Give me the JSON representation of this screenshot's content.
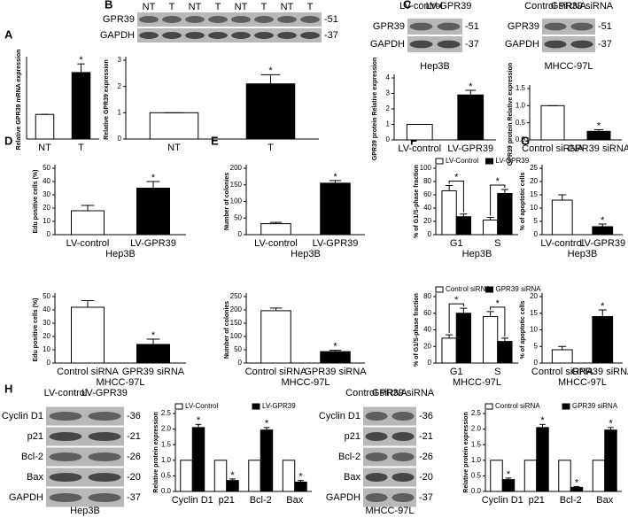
{
  "panels": [
    "A",
    "B",
    "C",
    "D",
    "E",
    "F",
    "G",
    "H"
  ],
  "blots": [
    {
      "columns": [
        "NT",
        "T",
        "NT",
        "T",
        "NT",
        "T",
        "NT",
        "T"
      ],
      "rows": [
        {
          "label": "GPR39",
          "size": "-51"
        },
        {
          "label": "GAPDH",
          "size": "-37"
        }
      ]
    },
    {
      "columns": [
        "LV-control",
        "LV-GPR39"
      ],
      "rows": [
        {
          "label": "GPR39",
          "size": "-51"
        },
        {
          "label": "GAPDH",
          "size": "-37"
        }
      ],
      "caption": "Hep3B"
    },
    {
      "columns": [
        "Control siRNA",
        "GPR39 siRNA"
      ],
      "rows": [
        {
          "label": "GPR39",
          "size": "-51"
        },
        {
          "label": "GAPDH",
          "size": "-37"
        }
      ],
      "caption": "MHCC-97L"
    },
    {
      "columns": [
        "LV-control",
        "LV-GPR39"
      ],
      "rows": [
        {
          "label": "Cyclin D1",
          "size": "-36"
        },
        {
          "label": "p21",
          "size": "-21"
        },
        {
          "label": "Bcl-2",
          "size": "-26"
        },
        {
          "label": "Bax",
          "size": "-20"
        },
        {
          "label": "GAPDH",
          "size": "-37"
        }
      ],
      "caption": "Hep3B"
    },
    {
      "columns": [
        "Control siRNA",
        "GPR39 siRNA"
      ],
      "rows": [
        {
          "label": "Cyclin D1",
          "size": "-36"
        },
        {
          "label": "p21",
          "size": "-21"
        },
        {
          "label": "Bcl-2",
          "size": "-26"
        },
        {
          "label": "Bax",
          "size": "-20"
        },
        {
          "label": "GAPDH",
          "size": "-37"
        }
      ],
      "caption": "MHCC-97L"
    }
  ],
  "chart_data": [
    {
      "type": "bar",
      "y_label": "Relative GPR39 mRNA expression",
      "categories": [
        "NT",
        "T"
      ],
      "values": [
        1,
        2.7
      ],
      "errors": [
        0,
        0.35
      ],
      "colors": [
        "#ffffff",
        "#000000"
      ],
      "ylim": [
        0,
        3.2
      ],
      "annotations": [
        {
          "text": "*",
          "category": "T"
        }
      ]
    },
    {
      "type": "bar",
      "y_label": "Relative GPR39 expression",
      "categories": [
        "NT",
        "T"
      ],
      "values": [
        1,
        2.1
      ],
      "errors": [
        0,
        0.35
      ],
      "colors": [
        "#ffffff",
        "#000000"
      ],
      "ylim": [
        0,
        3
      ],
      "yticks": [
        0,
        1,
        2,
        3
      ],
      "annotations": [
        {
          "text": "*",
          "category": "T"
        }
      ]
    },
    {
      "type": "bar",
      "y_label": "GPR39 protein Relative expression",
      "categories": [
        "LV-control",
        "LV-GPR39"
      ],
      "values": [
        1,
        2.9
      ],
      "errors": [
        0,
        0.3
      ],
      "colors": [
        "#ffffff",
        "#000000"
      ],
      "ylim": [
        0,
        4
      ],
      "yticks": [
        0,
        1,
        2,
        3,
        4
      ],
      "annotations": [
        {
          "text": "*",
          "category": "LV-GPR39"
        }
      ]
    },
    {
      "type": "bar",
      "y_label": "GPR39 protein Relative expression",
      "categories": [
        "Control siRNA",
        "GPR39 siRNA"
      ],
      "values": [
        1,
        0.25
      ],
      "errors": [
        0,
        0.05
      ],
      "colors": [
        "#ffffff",
        "#000000"
      ],
      "ylim": [
        0,
        1.5
      ],
      "yticks": [
        {
          "value": 0,
          "label": "0.0"
        },
        0.5,
        {
          "value": 1,
          "label": "1.0"
        },
        1.5
      ],
      "annotations": [
        {
          "text": "*",
          "category": "GPR39 siRNA"
        }
      ]
    },
    {
      "type": "bar",
      "y_label": "Edu positive cells (%)",
      "x_label": "Hep3B",
      "categories": [
        "LV-control",
        "LV-GPR39"
      ],
      "values": [
        18,
        35
      ],
      "errors": [
        4,
        5
      ],
      "colors": [
        "#ffffff",
        "#000000"
      ],
      "ylim": [
        0,
        50
      ],
      "yticks": [
        0,
        10,
        20,
        30,
        40,
        50
      ],
      "annotations": [
        {
          "text": "*",
          "category": "LV-GPR39"
        }
      ]
    },
    {
      "type": "bar",
      "y_label": "Edu positive cells (%)",
      "x_label": "MHCC-97L",
      "categories": [
        "Control siRNA",
        "GPR39 siRNA"
      ],
      "values": [
        42,
        14
      ],
      "errors": [
        5,
        4
      ],
      "colors": [
        "#ffffff",
        "#000000"
      ],
      "ylim": [
        0,
        50
      ],
      "yticks": [
        0,
        10,
        20,
        30,
        40,
        50
      ],
      "annotations": [
        {
          "text": "*",
          "category": "GPR39 siRNA"
        }
      ]
    },
    {
      "type": "bar",
      "y_label": "Number of colonies",
      "x_label": "Hep3B",
      "categories": [
        "LV-control",
        "LV-GPR39"
      ],
      "values": [
        33,
        155
      ],
      "errors": [
        4,
        8
      ],
      "colors": [
        "#ffffff",
        "#000000"
      ],
      "ylim": [
        0,
        200
      ],
      "yticks": [
        0,
        50,
        100,
        150,
        200
      ],
      "annotations": [
        {
          "text": "*",
          "category": "LV-GPR39"
        }
      ]
    },
    {
      "type": "bar",
      "y_label": "Number of colonies",
      "x_label": "MHCC-97L",
      "categories": [
        "Control siRNA",
        "GPR39 siRNA"
      ],
      "values": [
        197,
        43
      ],
      "errors": [
        10,
        5
      ],
      "colors": [
        "#ffffff",
        "#000000"
      ],
      "ylim": [
        0,
        250
      ],
      "yticks": [
        0,
        50,
        100,
        150,
        200,
        250
      ],
      "annotations": [
        {
          "text": "*",
          "category": "GPR39 siRNA"
        }
      ]
    },
    {
      "type": "grouped-bar",
      "y_label": "% of G1/S-phase fraction",
      "x_label": "Hep3B",
      "categories": [
        "G1",
        "S"
      ],
      "series": [
        {
          "name": "LV-Control",
          "color": "#ffffff",
          "values": [
            66,
            22
          ],
          "errors": [
            8,
            4
          ]
        },
        {
          "name": "LV-GPR39",
          "color": "#000000",
          "values": [
            27,
            62
          ],
          "errors": [
            4,
            6
          ]
        }
      ],
      "ylim": [
        0,
        100
      ],
      "yticks": [
        0,
        20,
        40,
        60,
        80,
        100
      ],
      "annotations": [
        {
          "text": "*",
          "category": "G1"
        },
        {
          "text": "*",
          "category": "S"
        }
      ]
    },
    {
      "type": "grouped-bar",
      "y_label": "% of G1/S-phase fraction",
      "x_label": "MHCC-97L",
      "categories": [
        "G1",
        "S"
      ],
      "series": [
        {
          "name": "Control siRNA",
          "color": "#ffffff",
          "values": [
            30,
            56
          ],
          "errors": [
            4,
            6
          ]
        },
        {
          "name": "GPR39 siRNA",
          "color": "#000000",
          "values": [
            60,
            26
          ],
          "errors": [
            6,
            4
          ]
        }
      ],
      "ylim": [
        0,
        80
      ],
      "yticks": [
        0,
        20,
        40,
        60,
        80
      ],
      "annotations": [
        {
          "text": "*",
          "category": "G1"
        },
        {
          "text": "*",
          "category": "S"
        }
      ]
    },
    {
      "type": "bar",
      "y_label": "% of apoptotic cells",
      "x_label": "Hep3B",
      "categories": [
        "LV-control",
        "LV-GPR39"
      ],
      "values": [
        13,
        3
      ],
      "errors": [
        2,
        1
      ],
      "colors": [
        "#ffffff",
        "#000000"
      ],
      "ylim": [
        0,
        25
      ],
      "yticks": [
        0,
        5,
        10,
        15,
        20,
        25
      ],
      "annotations": [
        {
          "text": "*",
          "category": "LV-GPR39"
        }
      ]
    },
    {
      "type": "bar",
      "y_label": "% of apoptotic cells",
      "x_label": "MHCC-97L",
      "categories": [
        "Control siRNA",
        "GPR39 siRNA"
      ],
      "values": [
        4,
        14
      ],
      "errors": [
        1,
        2
      ],
      "colors": [
        "#ffffff",
        "#000000"
      ],
      "ylim": [
        0,
        20
      ],
      "yticks": [
        0,
        5,
        10,
        15,
        20
      ],
      "annotations": [
        {
          "text": "*",
          "category": "GPR39 siRNA"
        }
      ]
    },
    {
      "type": "grouped-bar",
      "y_label": "Relative protein expression",
      "categories": [
        "Cyclin D1",
        "p21",
        "Bcl-2",
        "Bax"
      ],
      "series": [
        {
          "name": "LV-Control",
          "color": "#ffffff",
          "values": [
            1,
            1,
            1,
            1
          ],
          "errors": [
            0,
            0,
            0,
            0
          ]
        },
        {
          "name": "LV-GPR39",
          "color": "#000000",
          "values": [
            2.05,
            0.35,
            1.97,
            0.3
          ],
          "errors": [
            0.1,
            0.05,
            0.08,
            0.05
          ]
        }
      ],
      "ylim": [
        0,
        2.5
      ],
      "yticks": [
        {
          "value": 0,
          "label": "0.0"
        },
        0.5,
        {
          "value": 1,
          "label": "1.0"
        },
        1.5,
        {
          "value": 2,
          "label": "2.0"
        },
        2.5
      ],
      "annotations": [
        {
          "text": "*",
          "category": "Cyclin D1",
          "series": "LV-GPR39"
        },
        {
          "text": "*",
          "category": "p21",
          "series": "LV-GPR39"
        },
        {
          "text": "*",
          "category": "Bcl-2",
          "series": "LV-GPR39"
        },
        {
          "text": "*",
          "category": "Bax",
          "series": "LV-GPR39"
        }
      ]
    },
    {
      "type": "grouped-bar",
      "y_label": "Relative protein expression",
      "categories": [
        "Cyclin D1",
        "p21",
        "Bcl-2",
        "Bax"
      ],
      "series": [
        {
          "name": "Control siRNA",
          "color": "#ffffff",
          "values": [
            1,
            1,
            1,
            1
          ],
          "errors": [
            0,
            0,
            0,
            0
          ]
        },
        {
          "name": "GPR39 siRNA",
          "color": "#000000",
          "values": [
            0.38,
            2.05,
            0.13,
            1.97
          ],
          "errors": [
            0.05,
            0.1,
            0.03,
            0.08
          ]
        }
      ],
      "ylim": [
        0,
        2.5
      ],
      "yticks": [
        {
          "value": 0,
          "label": "0.0"
        },
        0.5,
        {
          "value": 1,
          "label": "1.0"
        },
        1.5,
        {
          "value": 2,
          "label": "2.0"
        },
        2.5
      ],
      "annotations": [
        {
          "text": "*",
          "category": "Cyclin D1",
          "series": "GPR39 siRNA"
        },
        {
          "text": "*",
          "category": "p21",
          "series": "GPR39 siRNA"
        },
        {
          "text": "*",
          "category": "Bcl-2",
          "series": "GPR39 siRNA"
        },
        {
          "text": "*",
          "category": "Bax",
          "series": "GPR39 siRNA"
        }
      ]
    }
  ]
}
